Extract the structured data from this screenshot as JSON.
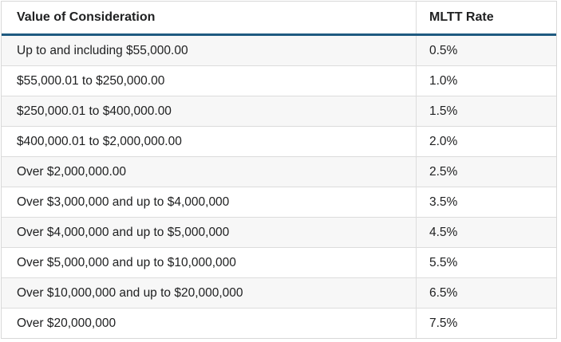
{
  "table": {
    "headers": {
      "value": "Value of Consideration",
      "rate": "MLTT Rate"
    },
    "rows": [
      {
        "value": "Up to and including $55,000.00",
        "rate": "0.5%"
      },
      {
        "value": "$55,000.01 to $250,000.00",
        "rate": "1.0%"
      },
      {
        "value": "$250,000.01 to $400,000.00",
        "rate": "1.5%"
      },
      {
        "value": "$400,000.01 to $2,000,000.00",
        "rate": "2.0%"
      },
      {
        "value": "Over $2,000,000.00",
        "rate": "2.5%"
      },
      {
        "value": "Over $3,000,000 and up to $4,000,000",
        "rate": "3.5%"
      },
      {
        "value": "Over $4,000,000 and up to $5,000,000",
        "rate": "4.5%"
      },
      {
        "value": "Over $5,000,000 and up to $10,000,000",
        "rate": "5.5%"
      },
      {
        "value": "Over $10,000,000 and up to $20,000,000",
        "rate": "6.5%"
      },
      {
        "value": "Over $20,000,000",
        "rate": "7.5%"
      }
    ]
  },
  "colors": {
    "header_border": "#1e5a80",
    "row_stripe": "#f7f7f7",
    "grid_line": "#dcdcdc",
    "outer_border": "#d8d8d8",
    "text": "#202122"
  }
}
